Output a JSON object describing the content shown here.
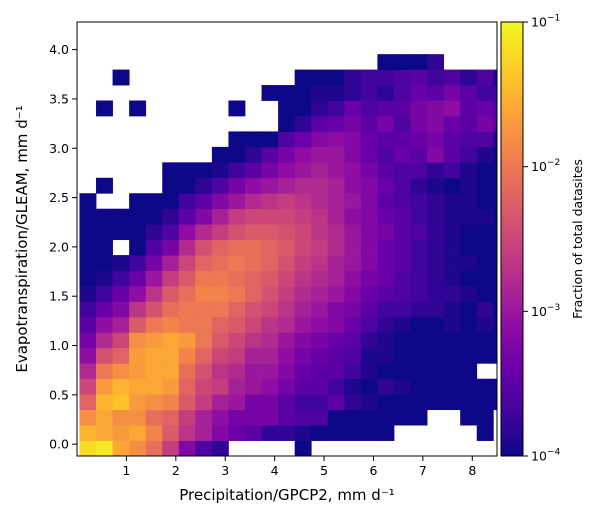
{
  "chart_data": {
    "type": "heatmap",
    "xlabel": "Precipitation/GPCP2,  mm d⁻¹",
    "ylabel": "Evapotranspiration/GLEAM,  mm d⁻¹",
    "colorbar_label": "Fraction of total datasites",
    "colorscale": "plasma",
    "color_scale_type": "log",
    "color_range": [
      0.0001,
      0.1
    ],
    "colorbar_ticks": [
      {
        "base": "10",
        "exp": "−4"
      },
      {
        "base": "10",
        "exp": "−3"
      },
      {
        "base": "10",
        "exp": "−2"
      },
      {
        "base": "10",
        "exp": "−1"
      }
    ],
    "xlim": [
      0,
      8.5
    ],
    "ylim": [
      -0.12,
      4.28
    ],
    "x_bin_start": 0.05,
    "x_bin_width": 0.335,
    "y_bin_start": -0.12,
    "y_bin_width": 0.1567,
    "x_ticks": [
      "1",
      "2",
      "3",
      "4",
      "5",
      "6",
      "7",
      "8"
    ],
    "y_ticks": [
      "0.0",
      "0.5",
      "1.0",
      "1.5",
      "2.0",
      "2.5",
      "3.0",
      "3.5",
      "4.0"
    ],
    "grid": false,
    "bins_note": "rows listed bottom to top; columns left to right; values are log10(fraction of total datasites); null = empty bin",
    "log10_values": [
      [
        -1.2,
        -1.1,
        -1.6,
        -1.8,
        -2.1,
        -2.6,
        -3.2,
        -3.6,
        -3.8,
        null,
        null,
        null,
        null,
        -4.0,
        null,
        null,
        null,
        null,
        null,
        null,
        null,
        null,
        null,
        null,
        null,
        null
      ],
      [
        -1.5,
        -1.6,
        -1.7,
        -1.6,
        -1.9,
        -2.3,
        -2.7,
        -2.9,
        -3.2,
        -3.4,
        -3.5,
        -3.8,
        -3.8,
        -3.9,
        -4.0,
        -4.0,
        -4.0,
        -4.0,
        -4.0,
        null,
        null,
        null,
        null,
        null,
        -4.0,
        null
      ],
      [
        -1.8,
        -1.6,
        -1.8,
        -1.8,
        -2.1,
        -2.2,
        -2.6,
        -2.9,
        -3.1,
        -3.3,
        -3.3,
        -3.3,
        -3.5,
        -3.6,
        -3.6,
        -4.0,
        -4.0,
        -4.0,
        -4.0,
        -4.0,
        -4.0,
        null,
        null,
        -4.0,
        -4.0,
        null
      ],
      [
        -2.2,
        -1.5,
        -1.4,
        -1.7,
        -1.8,
        -1.9,
        -2.3,
        -2.6,
        -2.9,
        -3.0,
        -3.3,
        -3.3,
        -3.5,
        -3.7,
        -3.7,
        -3.5,
        -3.8,
        -3.9,
        -4.0,
        -4.0,
        -4.0,
        -4.0,
        -4.0,
        -4.0,
        -4.0,
        -4.0
      ],
      [
        -2.5,
        -1.7,
        -1.5,
        -1.6,
        -1.6,
        -1.7,
        -2.2,
        -2.5,
        -2.6,
        -2.9,
        -3.0,
        -3.1,
        -3.3,
        -3.5,
        -3.5,
        -3.7,
        -3.9,
        -4.0,
        -3.8,
        -3.9,
        -4.0,
        -4.0,
        -4.0,
        -4.0,
        -4.0,
        -4.0
      ],
      [
        -2.8,
        -2.0,
        -1.8,
        -1.7,
        -1.6,
        -1.6,
        -2.1,
        -2.4,
        -2.7,
        -2.8,
        -3.0,
        -3.0,
        -3.2,
        -3.4,
        -3.5,
        -3.5,
        -3.7,
        -3.9,
        -4.0,
        -4.0,
        -4.0,
        -4.0,
        -4.0,
        -4.0,
        null,
        null
      ],
      [
        -3.1,
        -2.4,
        -2.2,
        -1.7,
        -1.6,
        -1.6,
        -1.9,
        -2.2,
        -2.5,
        -2.6,
        -2.9,
        -2.9,
        -3.1,
        -3.3,
        -3.4,
        -3.5,
        -3.6,
        -3.9,
        -3.9,
        -4.0,
        -4.0,
        -4.0,
        -4.0,
        -4.0,
        -4.0,
        -4.0
      ],
      [
        -3.3,
        -2.8,
        -2.5,
        -1.8,
        -1.7,
        -1.6,
        -1.7,
        -2.0,
        -2.3,
        -2.5,
        -2.7,
        -2.8,
        -3.0,
        -3.2,
        -3.3,
        -3.4,
        -3.5,
        -3.8,
        -3.9,
        -4.0,
        -4.0,
        -4.0,
        -4.0,
        -4.0,
        -4.0,
        -4.0
      ],
      [
        -3.5,
        -3.1,
        -2.9,
        -2.3,
        -2.0,
        -1.9,
        -2.0,
        -2.0,
        -2.2,
        -2.3,
        -2.5,
        -2.7,
        -2.8,
        -3.0,
        -3.1,
        -3.2,
        -3.4,
        -3.6,
        -3.8,
        -3.9,
        -4.0,
        -4.0,
        -3.9,
        -4.0,
        -3.9,
        -4.0
      ],
      [
        -3.7,
        -3.4,
        -3.2,
        -2.7,
        -2.4,
        -2.1,
        -2.0,
        -2.0,
        -2.0,
        -2.2,
        -2.4,
        -2.5,
        -2.7,
        -2.9,
        -3.0,
        -3.2,
        -3.3,
        -3.5,
        -3.7,
        -3.7,
        -3.8,
        -3.8,
        -3.9,
        -4.0,
        -3.8,
        -4.0
      ],
      [
        -3.9,
        -3.7,
        -3.4,
        -3.1,
        -2.7,
        -2.3,
        -2.1,
        -1.9,
        -1.9,
        -2.0,
        -2.2,
        -2.4,
        -2.6,
        -2.8,
        -2.9,
        -3.0,
        -3.2,
        -3.4,
        -3.5,
        -3.6,
        -3.7,
        -3.8,
        -3.8,
        -3.9,
        -4.0,
        -4.0
      ],
      [
        -4.0,
        -3.9,
        -3.7,
        -3.4,
        -3.0,
        -2.6,
        -2.3,
        -2.0,
        -2.0,
        -2.1,
        -2.2,
        -2.3,
        -2.5,
        -2.7,
        -2.8,
        -2.9,
        -3.1,
        -3.3,
        -3.4,
        -3.6,
        -3.7,
        -3.8,
        -3.9,
        -4.0,
        -4.0,
        -4.0
      ],
      [
        -4.0,
        -4.0,
        -3.9,
        -3.7,
        -3.3,
        -2.9,
        -2.5,
        -2.2,
        -2.1,
        -2.0,
        -2.1,
        -2.2,
        -2.4,
        -2.6,
        -2.7,
        -2.9,
        -3.0,
        -3.2,
        -3.4,
        -3.5,
        -3.7,
        -3.8,
        -3.9,
        -3.9,
        -4.0,
        -4.0
      ],
      [
        -4.0,
        -4.0,
        null,
        -4.0,
        -3.6,
        -3.3,
        -2.8,
        -2.4,
        -2.2,
        -2.1,
        -2.1,
        -2.2,
        -2.3,
        -2.5,
        -2.6,
        -2.8,
        -3.0,
        -3.2,
        -3.4,
        -3.5,
        -3.7,
        -3.8,
        -3.9,
        -4.0,
        -4.0,
        -4.0
      ],
      [
        -4.0,
        -4.0,
        -4.0,
        -4.0,
        -3.8,
        -3.6,
        -3.1,
        -2.8,
        -2.6,
        -2.4,
        -2.3,
        -2.3,
        -2.4,
        -2.5,
        -2.7,
        -2.8,
        -3.0,
        -3.2,
        -3.3,
        -3.5,
        -3.6,
        -3.8,
        -3.9,
        -4.0,
        -4.0,
        -4.0
      ],
      [
        -4.0,
        -4.0,
        -4.0,
        -4.0,
        -4.0,
        -3.8,
        -3.5,
        -3.2,
        -2.9,
        -2.6,
        -2.5,
        -2.5,
        -2.5,
        -2.6,
        -2.7,
        -2.9,
        -3.1,
        -3.2,
        -3.4,
        -3.5,
        -3.7,
        -3.8,
        -3.9,
        -3.9,
        -3.9,
        -4.0
      ],
      [
        -4.0,
        null,
        null,
        -4.0,
        -4.0,
        -4.0,
        -3.7,
        -3.5,
        -3.2,
        -3.0,
        -2.8,
        -2.7,
        -2.6,
        -2.7,
        -2.8,
        -2.9,
        -3.0,
        -3.2,
        -3.5,
        -3.6,
        -3.7,
        -3.8,
        -3.9,
        -3.9,
        -4.0,
        -4.0
      ],
      [
        null,
        -4.0,
        null,
        null,
        null,
        -4.0,
        -4.0,
        -3.8,
        -3.6,
        -3.3,
        -3.1,
        -3.0,
        -2.9,
        -2.8,
        -2.8,
        -2.9,
        -3.1,
        -3.2,
        -3.4,
        -3.6,
        -3.8,
        -3.9,
        -4.0,
        -3.9,
        -4.0,
        -4.0
      ],
      [
        null,
        null,
        null,
        null,
        null,
        -4.0,
        -4.0,
        -4.0,
        -3.9,
        -3.7,
        -3.5,
        -3.3,
        -3.1,
        -3.0,
        -2.9,
        -3.0,
        -3.1,
        -3.3,
        -3.5,
        -3.6,
        -3.6,
        -3.8,
        -3.7,
        -3.9,
        -4.0,
        -4.0
      ],
      [
        null,
        null,
        null,
        null,
        null,
        null,
        null,
        null,
        -4.0,
        -4.0,
        -3.8,
        -3.5,
        -3.3,
        -3.1,
        -3.0,
        -3.0,
        -3.2,
        -3.4,
        -3.6,
        -3.4,
        -3.5,
        -3.2,
        -3.5,
        -3.7,
        -3.9,
        -4.0
      ],
      [
        null,
        null,
        null,
        null,
        null,
        null,
        null,
        null,
        null,
        -4.0,
        -4.0,
        -4.0,
        -3.6,
        -3.4,
        -3.2,
        -3.1,
        -3.2,
        -3.4,
        -3.5,
        -3.5,
        -3.4,
        -3.3,
        -3.5,
        -3.6,
        -3.6,
        -3.9
      ],
      [
        null,
        null,
        null,
        null,
        null,
        null,
        null,
        null,
        null,
        null,
        null,
        null,
        -4.0,
        -3.8,
        -3.5,
        -3.4,
        -3.3,
        -3.5,
        -3.3,
        -3.6,
        -3.3,
        -3.2,
        -3.4,
        -3.5,
        -3.3,
        -3.5
      ],
      [
        null,
        -4.0,
        null,
        -4.0,
        null,
        null,
        null,
        null,
        null,
        -4.0,
        null,
        null,
        -4.0,
        -4.0,
        -3.8,
        -3.7,
        -3.4,
        -3.6,
        -3.5,
        -3.5,
        -3.3,
        -3.2,
        -3.1,
        -3.5,
        -3.4,
        -3.6
      ],
      [
        null,
        null,
        null,
        null,
        null,
        null,
        null,
        null,
        null,
        null,
        null,
        -4.0,
        -4.0,
        -4.0,
        -3.9,
        -3.9,
        -3.8,
        -3.7,
        -3.8,
        -3.6,
        -3.4,
        -3.5,
        -3.3,
        -3.5,
        -3.7,
        -3.7
      ],
      [
        null,
        null,
        -4.0,
        null,
        null,
        null,
        null,
        null,
        null,
        null,
        null,
        null,
        null,
        -4.0,
        -4.0,
        -4.0,
        -3.8,
        -3.7,
        -3.7,
        -3.6,
        -3.5,
        -3.7,
        -3.6,
        -3.8,
        -3.6,
        -3.9
      ],
      [
        null,
        null,
        null,
        null,
        null,
        null,
        null,
        null,
        null,
        null,
        null,
        null,
        null,
        null,
        null,
        null,
        null,
        null,
        -4.0,
        -4.0,
        -4.0,
        -3.8,
        null,
        null,
        null,
        null
      ],
      [
        null,
        null,
        null,
        null,
        null,
        null,
        null,
        null,
        null,
        null,
        null,
        null,
        null,
        null,
        null,
        null,
        null,
        null,
        null,
        null,
        null,
        null,
        null,
        null,
        null,
        null
      ]
    ]
  }
}
